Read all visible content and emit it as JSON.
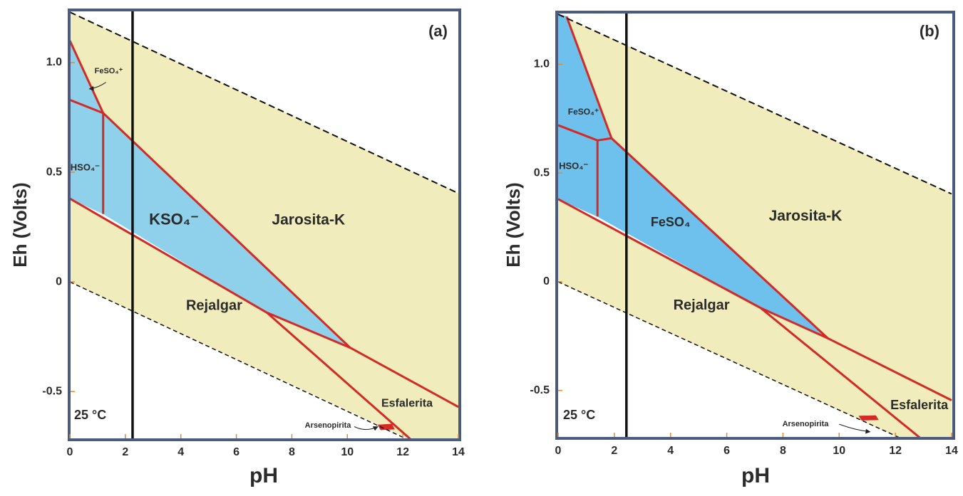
{
  "chart_data": [
    {
      "type": "pourbaix",
      "panel_label": "(a)",
      "annotation": "25 °C",
      "x_label": "pH",
      "y_label": "Eh (Volts)",
      "xlim": [
        0,
        14
      ],
      "ylim": [
        -0.72,
        1.24
      ],
      "xticks": [
        0,
        2,
        4,
        6,
        8,
        10,
        12,
        14
      ],
      "yticks": [
        {
          "value": 1,
          "label": "1.0"
        },
        0.5,
        0,
        -0.5
      ],
      "boundary_color": "#d42a26",
      "regions": [
        {
          "name": "Jarosita-K",
          "color": "#f1ecbb",
          "x": [
            0,
            14,
            14,
            10.1,
            1.2,
            0
          ],
          "y": [
            1.23,
            0.404,
            -0.57,
            -0.3,
            0.77,
            1.1
          ]
        },
        {
          "name": "Rejalgar",
          "color": "#f1ecbb",
          "x": [
            0,
            7.1,
            12.3,
            0
          ],
          "y": [
            0.38,
            -0.14,
            -0.72,
            0
          ]
        },
        {
          "name": "Esfalerita",
          "color": "#f1ecbb",
          "x": [
            7.1,
            10.1,
            14,
            14,
            12.3
          ],
          "y": [
            -0.14,
            -0.3,
            -0.57,
            -0.72,
            -0.72
          ]
        },
        {
          "name": "KSO₄⁻",
          "color": "#8fd0ea",
          "x": [
            1.2,
            10.1,
            7.1,
            1.2
          ],
          "y": [
            0.77,
            -0.3,
            -0.14,
            0.31
          ]
        },
        {
          "name": "HSO₄⁻",
          "color": "#8fd0ea",
          "x": [
            0,
            1.2,
            1.2,
            0
          ],
          "y": [
            0.83,
            0.77,
            0.31,
            0.38
          ]
        },
        {
          "name": "FeSO₄⁺",
          "color": "#8fd0ea",
          "x": [
            0,
            1.2,
            0
          ],
          "y": [
            1.1,
            0.77,
            0.83
          ]
        },
        {
          "name": "Arsenopirita",
          "color": "#d42a26",
          "x": [
            11.1,
            11.6,
            11.7,
            11.2
          ],
          "y": [
            -0.652,
            -0.648,
            -0.672,
            -0.675
          ]
        }
      ],
      "boundaries": [
        {
          "x": [
            0,
            1.2
          ],
          "y": [
            1.1,
            0.77
          ]
        },
        {
          "x": [
            0,
            1.2,
            10.1,
            14
          ],
          "y": [
            0.83,
            0.77,
            -0.3,
            -0.57
          ]
        },
        {
          "x": [
            1.2,
            1.2
          ],
          "y": [
            0.77,
            0.31
          ]
        },
        {
          "x": [
            0,
            7.1,
            10.1
          ],
          "y": [
            0.38,
            -0.14,
            -0.3
          ]
        },
        {
          "x": [
            7.1,
            12.3
          ],
          "y": [
            -0.14,
            -0.72
          ]
        }
      ],
      "lines": [
        {
          "x": [
            0,
            14
          ],
          "y": [
            1.23,
            0.404
          ],
          "dashed": true
        },
        {
          "x": [
            0,
            12.3
          ],
          "y": [
            0,
            -0.726
          ],
          "dashed": true
        },
        {
          "x": [
            2.26,
            2.26
          ],
          "y": [
            1.24,
            -0.72
          ],
          "dashed": false
        }
      ]
    },
    {
      "type": "pourbaix",
      "panel_label": "(b)",
      "annotation": "25 °C",
      "x_label": "pH",
      "y_label": "Eh (Volts)",
      "xlim": [
        0,
        14
      ],
      "ylim": [
        -0.72,
        1.24
      ],
      "xticks": [
        0,
        2,
        4,
        6,
        8,
        10,
        12,
        14
      ],
      "yticks": [
        {
          "value": 1,
          "label": "1.0"
        },
        0.5,
        0,
        -0.5
      ],
      "boundary_color": "#d42a26",
      "regions": [
        {
          "name": "Jarosita-K",
          "color": "#f1ecbb",
          "x": [
            0,
            14,
            14,
            9.6,
            1.9,
            0.3
          ],
          "y": [
            1.23,
            0.404,
            -0.545,
            -0.26,
            0.66,
            1.22
          ]
        },
        {
          "name": "Rejalgar",
          "color": "#f1ecbb",
          "x": [
            0,
            7.2,
            12.9,
            12.2,
            0
          ],
          "y": [
            0.38,
            -0.12,
            -0.72,
            -0.72,
            0
          ]
        },
        {
          "name": "Esfalerita",
          "color": "#f1ecbb",
          "x": [
            7.2,
            9.6,
            14,
            14,
            12.9
          ],
          "y": [
            -0.12,
            -0.26,
            -0.545,
            -0.72,
            -0.72
          ]
        },
        {
          "name": "FeSO₄",
          "color": "#6ec1ec",
          "x": [
            1.4,
            1.9,
            9.6,
            7.2,
            1.4
          ],
          "y": [
            0.65,
            0.66,
            -0.26,
            -0.12,
            0.3
          ]
        },
        {
          "name": "HSO₄⁻",
          "color": "#6ec1ec",
          "x": [
            0,
            1.4,
            1.4,
            0
          ],
          "y": [
            0.72,
            0.65,
            0.3,
            0.38
          ]
        },
        {
          "name": "FeSO₄⁺",
          "color": "#6ec1ec",
          "x": [
            0,
            0.3,
            1.9,
            1.4,
            0
          ],
          "y": [
            1.23,
            1.22,
            0.66,
            0.65,
            0.72
          ]
        },
        {
          "name": "Arsenopirita",
          "color": "#d42a26",
          "x": [
            10.7,
            11.3,
            11.4,
            10.8
          ],
          "y": [
            -0.617,
            -0.615,
            -0.635,
            -0.637
          ]
        }
      ],
      "boundaries": [
        {
          "x": [
            0.3,
            1.9
          ],
          "y": [
            1.22,
            0.66
          ]
        },
        {
          "x": [
            0,
            1.4,
            1.9,
            9.6,
            14
          ],
          "y": [
            0.72,
            0.65,
            0.66,
            -0.26,
            -0.545
          ]
        },
        {
          "x": [
            1.4,
            1.4
          ],
          "y": [
            0.65,
            0.3
          ]
        },
        {
          "x": [
            0,
            7.2,
            9.6
          ],
          "y": [
            0.38,
            -0.12,
            -0.26
          ]
        },
        {
          "x": [
            7.2,
            12.9
          ],
          "y": [
            -0.12,
            -0.72
          ]
        }
      ],
      "lines": [
        {
          "x": [
            0,
            14
          ],
          "y": [
            1.23,
            0.404
          ],
          "dashed": true
        },
        {
          "x": [
            0,
            12.2
          ],
          "y": [
            0,
            -0.72
          ],
          "dashed": true
        },
        {
          "x": [
            2.43,
            2.43
          ],
          "y": [
            1.24,
            -0.72
          ],
          "dashed": false
        }
      ]
    }
  ]
}
